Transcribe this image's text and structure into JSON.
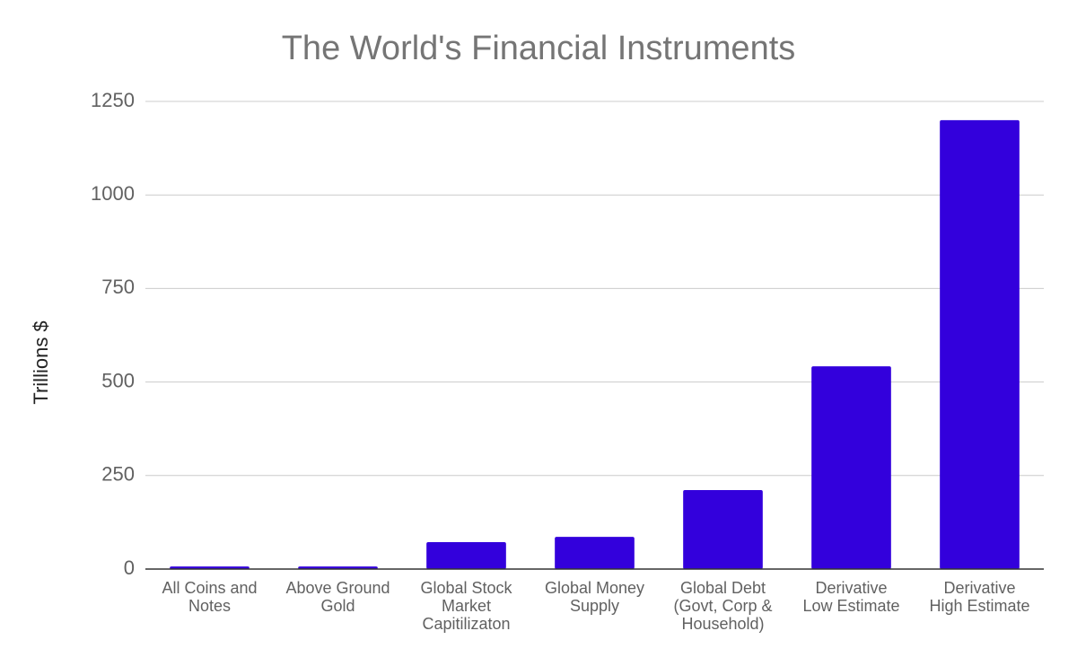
{
  "chart_data": {
    "type": "bar",
    "title": "The World's Financial Instruments",
    "y_label": "Trillions $",
    "categories": [
      "All Coins and\nNotes",
      "Above Ground\nGold",
      "Global Stock\nMarket\nCapitilizaton",
      "Global Money\nSupply",
      "Global Debt\n(Govt, Corp &\nHousehold)",
      "Derivative\nLow Estimate",
      "Derivative\nHigh Estimate"
    ],
    "values": [
      7,
      7,
      72,
      86,
      211,
      542,
      1200
    ],
    "color": "#3300dc",
    "ylim": [
      0,
      1250
    ],
    "yticks": [
      0,
      250,
      500,
      750,
      1000,
      1250
    ],
    "grid": true
  }
}
